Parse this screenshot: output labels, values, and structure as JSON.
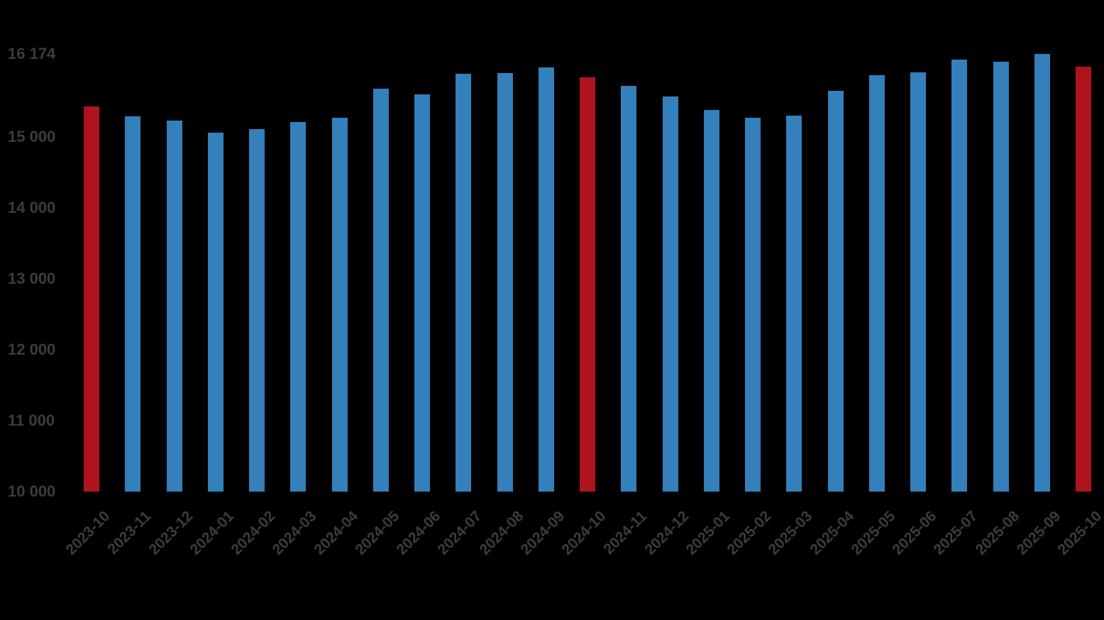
{
  "page": {
    "background_color": "#000000",
    "text_color": "#3c3c3c"
  },
  "chart_data": {
    "type": "bar",
    "title": "",
    "xlabel": "",
    "ylabel": "",
    "grid": "off",
    "legend": "none",
    "ylim": [
      10000,
      16174
    ],
    "categories": [
      "2023-10",
      "2023-11",
      "2023-12",
      "2024-01",
      "2024-02",
      "2024-03",
      "2024-04",
      "2024-05",
      "2024-06",
      "2024-07",
      "2024-08",
      "2024-09",
      "2024-10",
      "2024-11",
      "2024-12",
      "2025-01",
      "2025-02",
      "2025-03",
      "2025-04",
      "2025-05",
      "2025-06",
      "2025-07",
      "2025-08",
      "2025-09",
      "2025-10"
    ],
    "values": [
      15430,
      15290,
      15230,
      15060,
      15110,
      15210,
      15270,
      15680,
      15600,
      15890,
      15900,
      15980,
      15840,
      15720,
      15570,
      15380,
      15270,
      15300,
      15650,
      15870,
      15910,
      16090,
      16060,
      16174,
      15990
    ],
    "highlight_categories": [
      "2023-10",
      "2024-10",
      "2025-10"
    ],
    "y_ticks": [
      {
        "value": 10000,
        "label": "10 000"
      },
      {
        "value": 11000,
        "label": "11 000"
      },
      {
        "value": 12000,
        "label": "12 000"
      },
      {
        "value": 13000,
        "label": "13 000"
      },
      {
        "value": 14000,
        "label": "14 000"
      },
      {
        "value": 15000,
        "label": "15 000"
      }
    ],
    "y_max": {
      "value": 16174,
      "label": "16 174"
    },
    "colors": {
      "bar": "#3380BB",
      "highlight": "#AE141D",
      "label_text": "#3c3c3c"
    }
  }
}
